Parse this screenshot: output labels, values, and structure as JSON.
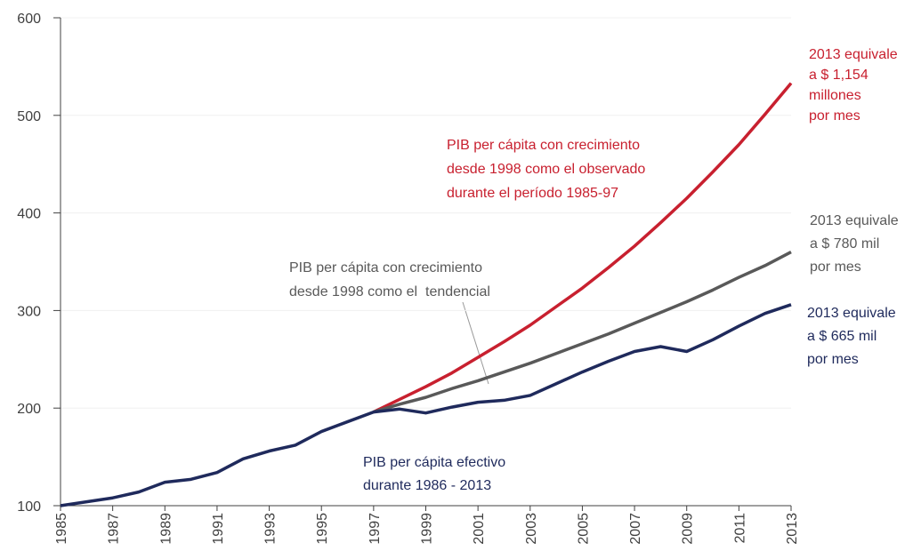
{
  "chart_data": {
    "type": "line",
    "x": [
      1985,
      1986,
      1987,
      1988,
      1989,
      1990,
      1991,
      1992,
      1993,
      1994,
      1995,
      1996,
      1997,
      1998,
      1999,
      2000,
      2001,
      2002,
      2003,
      2004,
      2005,
      2006,
      2007,
      2008,
      2009,
      2010,
      2011,
      2012,
      2013
    ],
    "series": [
      {
        "color": "#c8202f",
        "values": [
          null,
          null,
          null,
          null,
          null,
          null,
          null,
          null,
          null,
          null,
          null,
          null,
          196,
          209,
          222,
          236,
          252,
          268,
          285,
          304,
          323,
          344,
          366,
          390,
          415,
          442,
          470,
          501,
          533
        ]
      },
      {
        "color": "#595959",
        "values": [
          null,
          null,
          null,
          null,
          null,
          null,
          null,
          null,
          null,
          null,
          null,
          null,
          196,
          204,
          211,
          220,
          228,
          237,
          246,
          256,
          266,
          276,
          287,
          298,
          309,
          321,
          334,
          346,
          360
        ]
      },
      {
        "color": "#1f2a5c",
        "values": [
          100,
          104,
          108,
          114,
          124,
          127,
          134,
          148,
          156,
          162,
          176,
          186,
          196,
          199,
          195,
          201,
          206,
          208,
          213,
          225,
          237,
          248,
          258,
          263,
          258,
          270,
          284,
          297,
          306
        ]
      }
    ],
    "xlim": [
      1985,
      2013
    ],
    "xticks": [
      1985,
      1987,
      1989,
      1991,
      1993,
      1995,
      1997,
      1999,
      2001,
      2003,
      2005,
      2007,
      2009,
      2011,
      2013
    ],
    "ylim": [
      100,
      600
    ],
    "yticks": [
      100,
      200,
      300,
      400,
      500,
      600
    ],
    "grid": true,
    "annotations": [
      {
        "color": "#c8202f",
        "lines": [
          "2013 equivale",
          "a $ 1,154",
          "millones",
          "por mes"
        ]
      },
      {
        "color": "#c8202f",
        "lines": [
          "PIB per cápita con crecimiento",
          "desde 1998 como el observado",
          "durante el período 1985-97"
        ]
      },
      {
        "color": "#595959",
        "lines": [
          "2013 equivale",
          "a $ 780 mil",
          "por mes"
        ]
      },
      {
        "color": "#595959",
        "lines": [
          "PIB per cápita con crecimiento",
          "desde 1998 como el  tendencial"
        ]
      },
      {
        "color": "#1f2a5c",
        "lines": [
          "2013 equivale",
          "a $ 665 mil",
          "por mes"
        ]
      },
      {
        "color": "#1f2a5c",
        "lines": [
          "PIB per cápita efectivo",
          "durante 1986 - 2013"
        ]
      }
    ]
  }
}
